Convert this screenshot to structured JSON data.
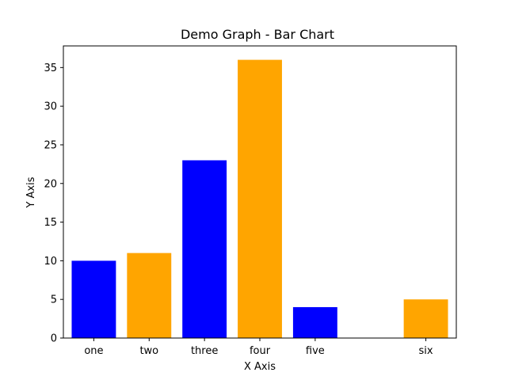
{
  "chart_data": {
    "type": "bar",
    "title": "Demo Graph - Bar Chart",
    "xlabel": "X Axis",
    "ylabel": "Y Axis",
    "x": [
      1,
      2,
      3,
      4,
      5,
      7
    ],
    "categories": [
      "one",
      "two",
      "three",
      "four",
      "five",
      "six"
    ],
    "values": [
      10,
      11,
      23,
      36,
      4,
      5
    ],
    "colors": [
      "#0000ff",
      "#ffa500",
      "#0000ff",
      "#ffa500",
      "#0000ff",
      "#ffa500"
    ],
    "xlim": [
      0.45,
      7.55
    ],
    "ylim": [
      0,
      37.8
    ],
    "yticks": [
      0,
      5,
      10,
      15,
      20,
      25,
      30,
      35
    ],
    "grid": false,
    "legend": null
  }
}
